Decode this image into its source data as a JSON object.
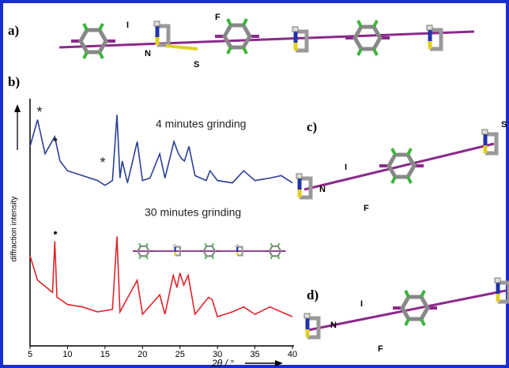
{
  "panels": {
    "a": "a)",
    "b": "b)",
    "c": "c)",
    "d": "d)"
  },
  "atoms": {
    "a": [
      "I",
      "N",
      "S",
      "F"
    ],
    "c": [
      "I",
      "N",
      "F",
      "S"
    ],
    "d": [
      "I",
      "N",
      "F"
    ]
  },
  "chart_data": {
    "type": "line",
    "xlabel": "2θ / °",
    "ylabel": "diffraction intensity",
    "xlim": [
      5,
      40
    ],
    "xticks": [
      5,
      10,
      15,
      20,
      25,
      30,
      35,
      40
    ],
    "ylim": [
      0,
      100
    ],
    "annotations": [
      "4 minutes grinding",
      "30 minutes grinding",
      "*",
      "•",
      "*",
      "•"
    ],
    "series": [
      {
        "name": "4 minutes grinding",
        "color": "#2b3f95",
        "x": [
          5,
          6,
          7,
          8.3,
          9,
          10,
          12,
          14,
          15,
          16,
          16.6,
          17,
          17.3,
          18,
          19.3,
          20,
          21,
          22.3,
          23,
          24.2,
          24.8,
          25.2,
          25.6,
          26.2,
          27,
          28.5,
          29,
          30,
          32,
          33.5,
          35,
          37,
          38.5,
          40
        ],
        "values": [
          82,
          93,
          79,
          86,
          76,
          72,
          70,
          68,
          66,
          68,
          95,
          69,
          76,
          67,
          84,
          68,
          69,
          79,
          69,
          84,
          79,
          77,
          76,
          82,
          70,
          68,
          72,
          68,
          67,
          72,
          68,
          69,
          70,
          67
        ]
      },
      {
        "name": "30 minutes grinding",
        "color": "#e0242a",
        "x": [
          5,
          6,
          8,
          8.3,
          8.6,
          10,
          12,
          14,
          16,
          16.6,
          17,
          19.3,
          20,
          22.3,
          23,
          24.1,
          24.6,
          25,
          25.5,
          26.1,
          27,
          28.8,
          29.3,
          30,
          32,
          33.5,
          35,
          37,
          38.5,
          40
        ],
        "values": [
          37,
          27,
          22,
          43,
          20,
          17,
          16,
          14,
          15,
          45,
          14,
          27,
          13,
          21,
          13,
          29,
          24,
          30,
          25,
          29,
          13,
          20,
          19,
          12,
          14,
          16,
          13,
          16,
          14,
          12
        ]
      }
    ]
  }
}
